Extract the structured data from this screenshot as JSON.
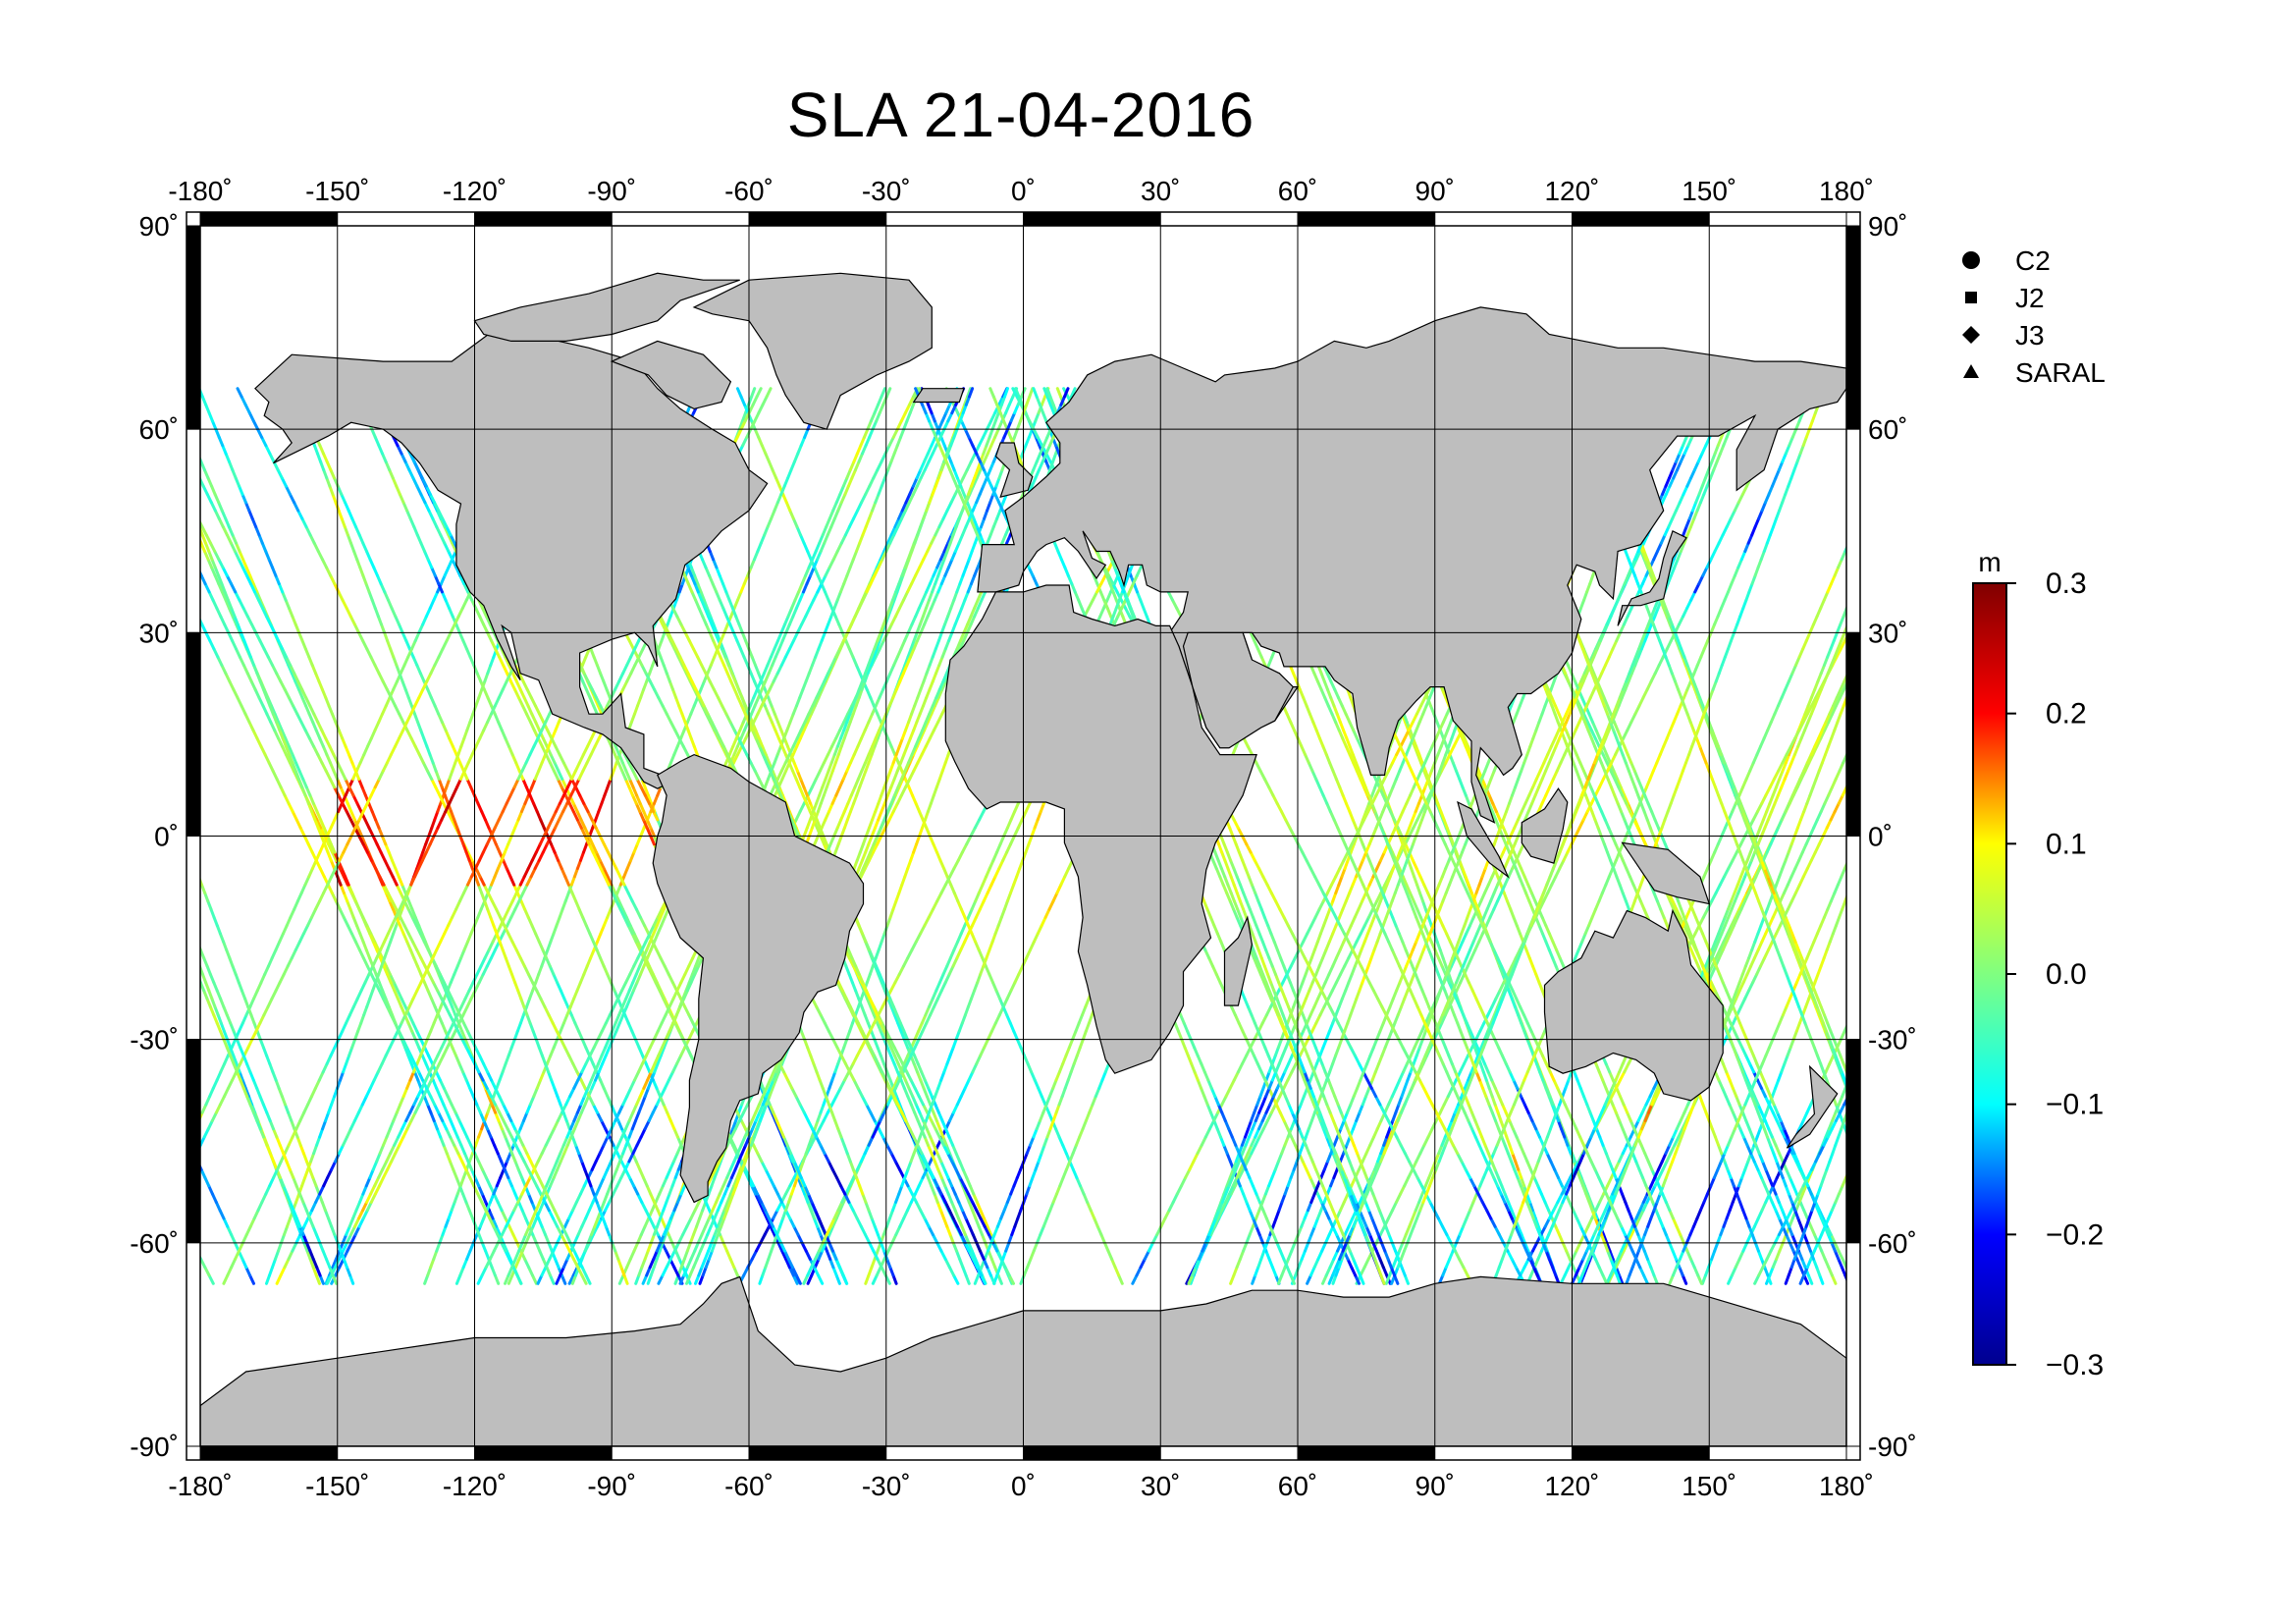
{
  "title": "SLA 21-04-2016",
  "map": {
    "projection": "equirectangular",
    "lon_range": [
      -180,
      180
    ],
    "lat_range": [
      -90,
      90
    ],
    "lon_ticks": [
      "-180˚",
      "-150˚",
      "-120˚",
      "-90˚",
      "-60˚",
      "-30˚",
      "0˚",
      "30˚",
      "60˚",
      "90˚",
      "120˚",
      "150˚",
      "180˚"
    ],
    "lat_ticks": [
      "90˚",
      "60˚",
      "30˚",
      "0˚",
      "-30˚",
      "-60˚",
      "-90˚"
    ],
    "gridlines": true,
    "land_color": "#bebebe",
    "ocean_color": "#ffffff"
  },
  "legend": {
    "placement": "top-right",
    "items": [
      {
        "symbol": "circle",
        "label": "C2"
      },
      {
        "symbol": "square",
        "label": "J2"
      },
      {
        "symbol": "diamond",
        "label": "J3"
      },
      {
        "symbol": "triangle",
        "label": "SARAL"
      }
    ]
  },
  "colorbar": {
    "unit": "m",
    "min": -0.3,
    "max": 0.3,
    "tick_labels": [
      "0.3",
      "0.2",
      "0.1",
      "0.0",
      "−0.1",
      "−0.2",
      "−0.3"
    ],
    "colormap": [
      "#00008f",
      "#0000ff",
      "#00ffff",
      "#80ff80",
      "#ffff00",
      "#ff0000",
      "#800000"
    ]
  },
  "chart_data": {
    "type": "scatter",
    "title": "SLA 21-04-2016",
    "variable": "sea level anomaly",
    "unit": "m",
    "value_range": [
      -0.3,
      0.3
    ],
    "missions": [
      "C2",
      "J2",
      "J3",
      "SARAL"
    ],
    "coverage": "along-track satellite altimetry tracks over the global ocean between about 66˚N and 66˚S"
  }
}
